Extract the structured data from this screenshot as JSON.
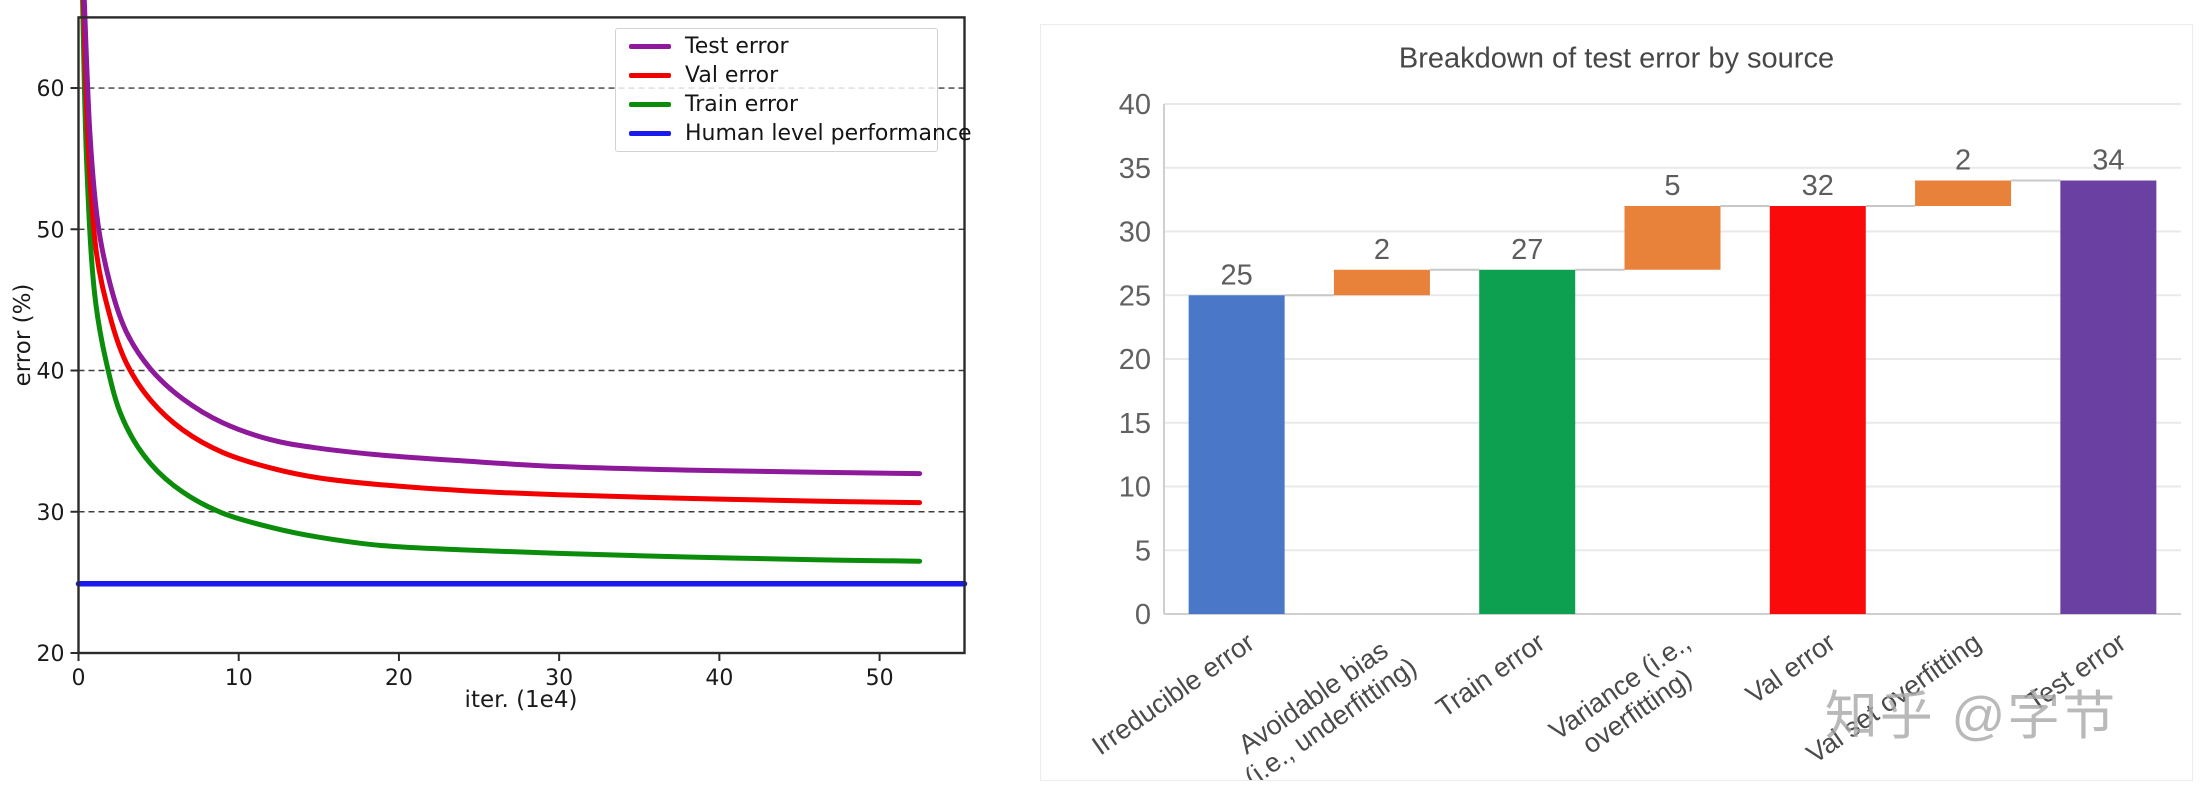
{
  "page": {
    "background": "#ffffff"
  },
  "chart_data": [
    {
      "type": "line",
      "title": "",
      "xlabel": "iter. (1e4)",
      "ylabel": "error (%)",
      "xlim": [
        0,
        55.3
      ],
      "ylim": [
        20,
        65
      ],
      "xticks": [
        0,
        10,
        20,
        30,
        40,
        50
      ],
      "yticks": [
        20,
        30,
        40,
        50,
        60
      ],
      "gridlines": {
        "y_values": [
          30,
          40,
          50,
          60
        ],
        "style": "dashed",
        "color": "#3c3c3c"
      },
      "legend_position": "upper right",
      "series": [
        {
          "name": "Test error",
          "color": "#8E199B",
          "linewidth": 5,
          "x": [
            0.35,
            0.7,
            1.2,
            2,
            3,
            4.5,
            6.5,
            9,
            12,
            15,
            19,
            24,
            30,
            38,
            46,
            52.5
          ],
          "y": [
            66.5,
            57,
            50.5,
            46,
            42.7,
            40.1,
            38,
            36.3,
            35.1,
            34.5,
            34.0,
            33.6,
            33.2,
            32.95,
            32.8,
            32.7
          ]
        },
        {
          "name": "Val error",
          "color": "#F20000",
          "linewidth": 5,
          "x": [
            0.3,
            0.6,
            1.1,
            2,
            3,
            4.5,
            6.5,
            9,
            12,
            15,
            19,
            24,
            30,
            38,
            46,
            52.5
          ],
          "y": [
            66.5,
            56,
            48.5,
            43.7,
            40.5,
            37.9,
            35.8,
            34.2,
            33.1,
            32.4,
            31.9,
            31.5,
            31.2,
            30.95,
            30.75,
            30.65
          ]
        },
        {
          "name": "Train error",
          "color": "#0B8D0B",
          "linewidth": 5,
          "x": [
            0.25,
            0.5,
            1,
            2,
            3,
            4.5,
            6.5,
            9,
            12,
            15,
            19,
            24,
            30,
            38,
            46,
            52.5
          ],
          "y": [
            66.5,
            55,
            45.5,
            39.3,
            36,
            33.4,
            31.4,
            29.9,
            28.9,
            28.2,
            27.6,
            27.3,
            27.05,
            26.8,
            26.6,
            26.5
          ]
        },
        {
          "name": "Human level performance",
          "color": "#1A1AEF",
          "linewidth": 5.5,
          "x": [
            0,
            55.3
          ],
          "y": [
            24.9,
            24.9
          ]
        }
      ]
    },
    {
      "type": "bar",
      "subtype": "waterfall",
      "title": "Breakdown of test error by source",
      "categories": [
        "Irreducible error",
        "Avoidable bias\n(i.e., underfitting)",
        "Train error",
        "Variance (i.e.,\noverfitting)",
        "Val error",
        "Val set overfitting",
        "Test error"
      ],
      "series": [
        {
          "category": "Irreducible error",
          "base": 0,
          "value": 25,
          "label": "25",
          "color": "#4B77C9"
        },
        {
          "category": "Avoidable bias (i.e., underfitting)",
          "base": 25,
          "value": 2,
          "label": "2",
          "color": "#E8823B"
        },
        {
          "category": "Train error",
          "base": 0,
          "value": 27,
          "label": "27",
          "color": "#0DA051"
        },
        {
          "category": "Variance (i.e., overfitting)",
          "base": 27,
          "value": 5,
          "label": "5",
          "color": "#E8823B"
        },
        {
          "category": "Val error",
          "base": 0,
          "value": 32,
          "label": "32",
          "color": "#FA0A0A"
        },
        {
          "category": "Val set overfitting",
          "base": 32,
          "value": 2,
          "label": "2",
          "color": "#E8823B"
        },
        {
          "category": "Test error",
          "base": 0,
          "value": 34,
          "label": "34",
          "color": "#6B40A3"
        }
      ],
      "connector_levels": [
        25,
        27,
        27,
        32,
        32,
        34
      ],
      "yticks": [
        0,
        5,
        10,
        15,
        20,
        25,
        30,
        35,
        40
      ],
      "ylim": [
        0,
        40
      ],
      "grid": true,
      "legend_position": "none",
      "watermark": "知乎 @字节"
    }
  ]
}
